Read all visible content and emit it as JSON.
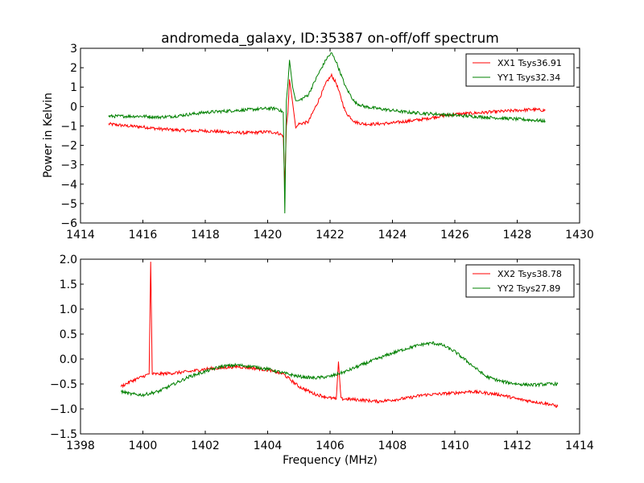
{
  "figure": {
    "title": "andromeda_galaxy, ID:35387 on-off/off spectrum",
    "xlabel": "Frequency (MHz)",
    "ylabel": "Power in Kelvin"
  },
  "chart_data": [
    {
      "type": "line",
      "title": "andromeda_galaxy, ID:35387 on-off/off spectrum",
      "xlabel": "",
      "ylabel": "Power in Kelvin",
      "xlim": [
        1414,
        1430
      ],
      "ylim": [
        -6,
        3
      ],
      "xticks": [
        "1414",
        "1416",
        "1418",
        "1420",
        "1422",
        "1424",
        "1426",
        "1428",
        "1430"
      ],
      "yticks": [
        "3",
        "2",
        "1",
        "0",
        "−1",
        "−2",
        "−3",
        "−4",
        "−5",
        "−6"
      ],
      "legend_position": "top-right",
      "grid": false,
      "series": [
        {
          "name": "XX1 Tsys36.91",
          "color": "#ff0000",
          "x": [
            1414.9,
            1415.5,
            1416.0,
            1416.5,
            1417.0,
            1417.5,
            1418.0,
            1418.5,
            1419.0,
            1419.5,
            1420.0,
            1420.3,
            1420.5,
            1420.55,
            1420.6,
            1420.65,
            1420.7,
            1420.8,
            1420.9,
            1421.0,
            1421.3,
            1421.6,
            1421.9,
            1422.05,
            1422.2,
            1422.5,
            1422.8,
            1423.1,
            1423.5,
            1424.0,
            1424.5,
            1425.0,
            1425.5,
            1426.0,
            1426.5,
            1427.0,
            1427.5,
            1428.0,
            1428.5,
            1428.9
          ],
          "y": [
            -0.9,
            -1.0,
            -1.05,
            -1.15,
            -1.2,
            -1.25,
            -1.25,
            -1.3,
            -1.35,
            -1.35,
            -1.3,
            -1.35,
            -1.5,
            -4.1,
            -1.0,
            -0.3,
            1.4,
            0.2,
            -1.1,
            -0.9,
            -0.8,
            0.2,
            1.3,
            1.6,
            1.2,
            -0.3,
            -0.8,
            -0.9,
            -0.9,
            -0.85,
            -0.75,
            -0.65,
            -0.5,
            -0.4,
            -0.35,
            -0.3,
            -0.25,
            -0.2,
            -0.15,
            -0.2
          ]
        },
        {
          "name": "YY1 Tsys32.34",
          "color": "#008000",
          "x": [
            1414.9,
            1415.5,
            1416.0,
            1416.5,
            1417.0,
            1417.5,
            1418.0,
            1418.5,
            1419.0,
            1419.5,
            1420.0,
            1420.3,
            1420.5,
            1420.55,
            1420.6,
            1420.65,
            1420.7,
            1420.8,
            1420.9,
            1421.0,
            1421.3,
            1421.6,
            1421.9,
            1422.05,
            1422.2,
            1422.5,
            1422.8,
            1423.1,
            1423.5,
            1424.0,
            1424.5,
            1425.0,
            1425.5,
            1426.0,
            1426.5,
            1427.0,
            1427.5,
            1428.0,
            1428.5,
            1428.9
          ],
          "y": [
            -0.5,
            -0.5,
            -0.5,
            -0.55,
            -0.5,
            -0.4,
            -0.3,
            -0.25,
            -0.2,
            -0.15,
            -0.1,
            -0.1,
            -0.3,
            -5.5,
            0.3,
            1.2,
            2.4,
            1.0,
            0.3,
            0.3,
            0.6,
            1.6,
            2.5,
            2.75,
            2.3,
            1.0,
            0.2,
            0.0,
            -0.1,
            -0.2,
            -0.3,
            -0.35,
            -0.4,
            -0.45,
            -0.5,
            -0.55,
            -0.6,
            -0.65,
            -0.7,
            -0.75
          ]
        }
      ]
    },
    {
      "type": "line",
      "title": "",
      "xlabel": "Frequency (MHz)",
      "ylabel": "",
      "xlim": [
        1398,
        1414
      ],
      "ylim": [
        -1.5,
        2.0
      ],
      "xticks": [
        "1398",
        "1400",
        "1402",
        "1404",
        "1406",
        "1408",
        "1410",
        "1412",
        "1414"
      ],
      "yticks": [
        "2.0",
        "1.5",
        "1.0",
        "0.5",
        "0.0",
        "−0.5",
        "−1.0",
        "−1.5"
      ],
      "legend_position": "top-right",
      "grid": false,
      "series": [
        {
          "name": "XX2 Tsys38.78",
          "color": "#ff0000",
          "x": [
            1399.3,
            1399.6,
            1400.0,
            1400.2,
            1400.25,
            1400.3,
            1400.5,
            1401.0,
            1401.5,
            1402.0,
            1402.5,
            1403.0,
            1403.5,
            1404.0,
            1404.5,
            1405.0,
            1405.5,
            1406.0,
            1406.2,
            1406.27,
            1406.35,
            1406.5,
            1407.0,
            1407.5,
            1408.0,
            1408.5,
            1409.0,
            1409.5,
            1410.0,
            1410.5,
            1411.0,
            1411.5,
            1412.0,
            1412.5,
            1413.0,
            1413.3
          ],
          "y": [
            -0.55,
            -0.45,
            -0.35,
            -0.3,
            1.95,
            -0.3,
            -0.3,
            -0.28,
            -0.25,
            -0.2,
            -0.18,
            -0.15,
            -0.18,
            -0.22,
            -0.3,
            -0.55,
            -0.7,
            -0.78,
            -0.8,
            -0.05,
            -0.8,
            -0.8,
            -0.82,
            -0.85,
            -0.82,
            -0.78,
            -0.72,
            -0.7,
            -0.68,
            -0.65,
            -0.68,
            -0.72,
            -0.8,
            -0.85,
            -0.9,
            -0.95
          ]
        },
        {
          "name": "YY2 Tsys27.89",
          "color": "#008000",
          "x": [
            1399.3,
            1399.6,
            1400.0,
            1400.5,
            1401.0,
            1401.5,
            1402.0,
            1402.5,
            1403.0,
            1403.5,
            1404.0,
            1404.5,
            1405.0,
            1405.5,
            1406.0,
            1406.5,
            1407.0,
            1407.5,
            1408.0,
            1408.5,
            1409.0,
            1409.3,
            1409.6,
            1410.0,
            1410.5,
            1411.0,
            1411.5,
            1412.0,
            1412.5,
            1413.0,
            1413.3
          ],
          "y": [
            -0.65,
            -0.7,
            -0.72,
            -0.65,
            -0.5,
            -0.35,
            -0.25,
            -0.15,
            -0.12,
            -0.15,
            -0.2,
            -0.28,
            -0.35,
            -0.38,
            -0.35,
            -0.25,
            -0.12,
            0.0,
            0.12,
            0.22,
            0.3,
            0.32,
            0.28,
            0.15,
            -0.1,
            -0.35,
            -0.45,
            -0.5,
            -0.52,
            -0.5,
            -0.5
          ]
        }
      ]
    }
  ]
}
